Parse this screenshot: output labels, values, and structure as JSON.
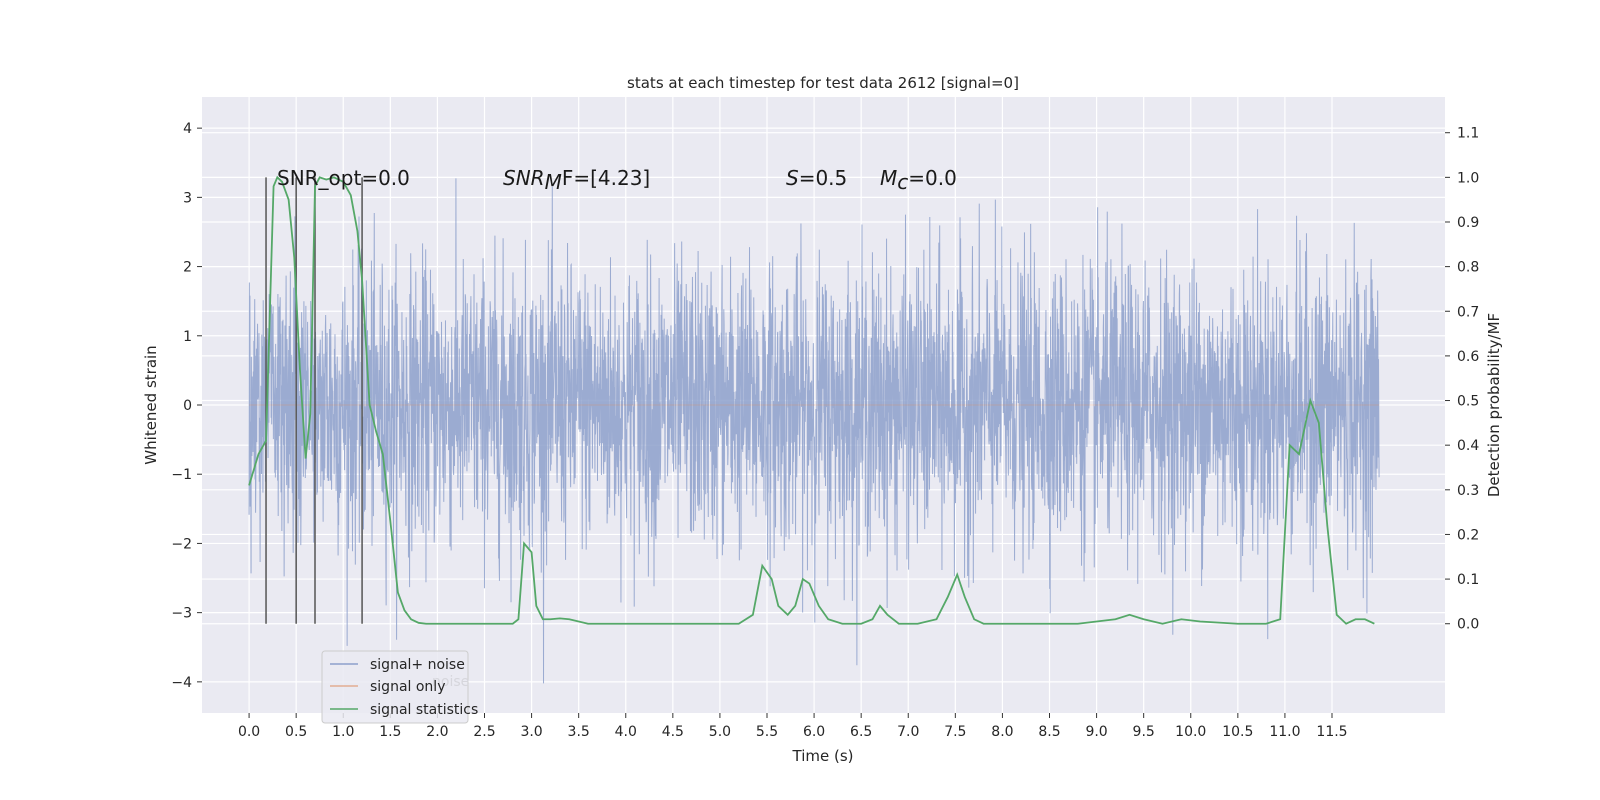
{
  "chart_data": {
    "type": "line",
    "title": "stats at each timestep for test data 2612 [signal=0]",
    "xlabel": "Time (s)",
    "ylabel": "Whitened strain",
    "ylabel_right": "Detection probability/MF",
    "xlim": [
      -0.5,
      12.7
    ],
    "ylim_left": [
      -4.45,
      4.45
    ],
    "ylim_right": [
      -0.2,
      1.18
    ],
    "x_ticks": [
      "0.0",
      "0.5",
      "1.0",
      "1.5",
      "2.0",
      "2.5",
      "3.0",
      "3.5",
      "4.0",
      "4.5",
      "5.0",
      "5.5",
      "6.0",
      "6.5",
      "7.0",
      "7.5",
      "8.0",
      "8.5",
      "9.0",
      "9.5",
      "10.0",
      "10.5",
      "11.0",
      "11.5"
    ],
    "y_ticks_left": [
      "4",
      "3",
      "2",
      "1",
      "0",
      "−1",
      "−2",
      "−3",
      "−4"
    ],
    "y_ticks_right": [
      "1.1",
      "1.0",
      "0.9",
      "0.8",
      "0.7",
      "0.6",
      "0.5",
      "0.4",
      "0.3",
      "0.2",
      "0.1",
      "0.0"
    ],
    "grid": true,
    "annotations": {
      "snr_opt": "SNR_opt=0.0",
      "snr_mf_prefix": "SNR",
      "snr_mf_sub": "M",
      "snr_mf_suffix": "F=[4.23]",
      "s_var": "S",
      "s_value": "=0.5",
      "mc_var": "M",
      "mc_sub": "c",
      "mc_value": "=0.0"
    },
    "vertical_markers_x": [
      0.18,
      0.5,
      0.7,
      1.2
    ],
    "series": [
      {
        "name": "signal+ noise",
        "color": "#8da0cb",
        "axis": "left",
        "style": "dense noise",
        "time_range": [
          0.0,
          12.0
        ],
        "amplitude_band": [
          -2.0,
          2.0
        ],
        "max": 4.1,
        "min": -4.1
      },
      {
        "name": "signal only",
        "color": "#dd8452",
        "axis": "left",
        "x": [
          0.0,
          12.0
        ],
        "y": [
          0.0,
          0.0
        ]
      },
      {
        "name": "signal statistics",
        "color": "#55a868",
        "axis": "right",
        "x": [
          0.0,
          0.1,
          0.18,
          0.26,
          0.3,
          0.35,
          0.42,
          0.48,
          0.54,
          0.6,
          0.65,
          0.7,
          0.75,
          0.82,
          0.9,
          1.0,
          1.08,
          1.15,
          1.2,
          1.28,
          1.35,
          1.42,
          1.5,
          1.58,
          1.65,
          1.72,
          1.8,
          1.88,
          2.0,
          2.2,
          2.4,
          2.6,
          2.8,
          2.86,
          2.92,
          3.0,
          3.05,
          3.12,
          3.2,
          3.3,
          3.4,
          3.6,
          4.0,
          4.5,
          5.0,
          5.2,
          5.35,
          5.45,
          5.55,
          5.62,
          5.72,
          5.8,
          5.88,
          5.95,
          6.05,
          6.15,
          6.3,
          6.5,
          6.62,
          6.7,
          6.78,
          6.9,
          7.1,
          7.3,
          7.42,
          7.52,
          7.6,
          7.7,
          7.8,
          8.0,
          8.5,
          8.8,
          9.0,
          9.2,
          9.35,
          9.5,
          9.7,
          9.9,
          10.1,
          10.5,
          10.8,
          10.95,
          11.05,
          11.15,
          11.27,
          11.36,
          11.45,
          11.55,
          11.65,
          11.75,
          11.85,
          11.95
        ],
        "y": [
          0.31,
          0.38,
          0.41,
          0.98,
          1.0,
          0.99,
          0.95,
          0.82,
          0.57,
          0.37,
          0.47,
          0.98,
          1.0,
          0.995,
          1.0,
          0.99,
          0.96,
          0.88,
          0.77,
          0.49,
          0.43,
          0.38,
          0.23,
          0.07,
          0.03,
          0.01,
          0.002,
          0.0,
          0.0,
          0.0,
          0.0,
          0.0,
          0.0,
          0.01,
          0.18,
          0.16,
          0.04,
          0.01,
          0.01,
          0.012,
          0.01,
          0.0,
          0.0,
          0.0,
          0.0,
          0.0,
          0.02,
          0.13,
          0.1,
          0.04,
          0.02,
          0.04,
          0.1,
          0.09,
          0.04,
          0.01,
          0.0,
          0.0,
          0.01,
          0.04,
          0.02,
          0.0,
          0.0,
          0.01,
          0.06,
          0.11,
          0.06,
          0.01,
          0.0,
          0.0,
          0.0,
          0.0,
          0.005,
          0.01,
          0.02,
          0.01,
          0.0,
          0.01,
          0.005,
          0.0,
          0.0,
          0.01,
          0.4,
          0.38,
          0.5,
          0.45,
          0.22,
          0.02,
          0.0,
          0.01,
          0.01,
          0.0
        ]
      }
    ],
    "legend": {
      "placement": "lower-left",
      "hidden_text": "noise"
    }
  }
}
